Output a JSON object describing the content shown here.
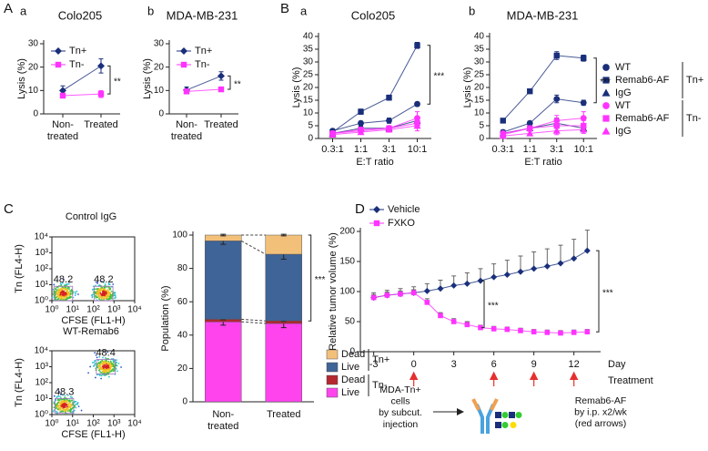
{
  "panel_labels": [
    "A",
    "a",
    "b",
    "B",
    "a",
    "b",
    "C",
    "D"
  ],
  "chart_data": [
    {
      "type": "line",
      "title": "Colo205",
      "ylabel": "Lysis (%)",
      "categories": [
        "Non-\ntreated",
        "Treated"
      ],
      "ylim": [
        0,
        30
      ],
      "yticks": [
        0,
        10,
        20,
        30
      ],
      "legend": "upper left",
      "series": [
        {
          "name": "Tn+",
          "color": "#1a2f7a",
          "marker": "diamond",
          "values": [
            10,
            20.5
          ],
          "errors": [
            2,
            3
          ]
        },
        {
          "name": "Tn-",
          "color": "#ff33ff",
          "marker": "square",
          "values": [
            7.8,
            8.5
          ],
          "errors": [
            0.8,
            1.5
          ]
        }
      ],
      "significance": "**"
    },
    {
      "type": "line",
      "title": "MDA-MB-231",
      "ylabel": "Lysis (%)",
      "categories": [
        "Non-\ntreated",
        "Treated"
      ],
      "ylim": [
        0,
        30
      ],
      "yticks": [
        0,
        10,
        20,
        30
      ],
      "legend": "upper left",
      "series": [
        {
          "name": "Tn+",
          "color": "#1a2f7a",
          "marker": "diamond",
          "values": [
            10.2,
            16.2
          ],
          "errors": [
            1.3,
            1.8
          ]
        },
        {
          "name": "Tn-",
          "color": "#ff33ff",
          "marker": "square",
          "values": [
            9.6,
            10.5
          ],
          "errors": [
            0.8,
            0.8
          ]
        }
      ],
      "significance": "**"
    },
    {
      "type": "line",
      "title": "Colo205",
      "ylabel": "Lysis (%)",
      "xlabel": "E:T ratio",
      "categories": [
        "0.3:1",
        "1:1",
        "3:1",
        "10:1"
      ],
      "ylim": [
        0,
        40
      ],
      "yticks": [
        0,
        5,
        10,
        15,
        20,
        25,
        30,
        35,
        40
      ],
      "series": [
        {
          "name": "WT",
          "color": "#1a2f7a",
          "marker": "circle",
          "values": [
            3,
            6,
            7,
            13.5
          ],
          "errors": [
            0.8,
            0.8,
            1,
            0.8
          ]
        },
        {
          "name": "Remab6-AF",
          "color": "#1a2f7a",
          "marker": "square",
          "values": [
            2.5,
            10.5,
            16,
            36.5
          ],
          "errors": [
            0.8,
            1,
            1,
            1.2
          ]
        },
        {
          "name": "IgG",
          "color": "#1a2f7a",
          "marker": "triangle",
          "values": [
            2,
            4,
            4,
            7
          ],
          "errors": [
            0.8,
            0.8,
            1,
            1.5
          ]
        },
        {
          "name": "WT",
          "color": "#ff33ff",
          "marker": "circle",
          "values": [
            2,
            3,
            4,
            8
          ],
          "errors": [
            0.8,
            0.8,
            1,
            2.5
          ]
        },
        {
          "name": "Remab6-AF",
          "color": "#ff33ff",
          "marker": "square",
          "values": [
            2,
            3.5,
            4,
            6
          ],
          "errors": [
            0.8,
            0.8,
            1,
            2
          ]
        },
        {
          "name": "IgG",
          "color": "#ff33ff",
          "marker": "triangle",
          "values": [
            1.5,
            2.5,
            3.5,
            5
          ],
          "errors": [
            0.8,
            0.8,
            1,
            2
          ]
        }
      ],
      "significance": "***"
    },
    {
      "type": "line",
      "title": "MDA-MB-231",
      "ylabel": "Lysis (%)",
      "xlabel": "E:T ratio",
      "categories": [
        "0.3:1",
        "1:1",
        "3:1",
        "10:1"
      ],
      "ylim": [
        0,
        40
      ],
      "yticks": [
        0,
        5,
        10,
        15,
        20,
        25,
        30,
        35,
        40
      ],
      "legend": "right",
      "legend_groups": [
        "Tn+",
        "Tn-"
      ],
      "series": [
        {
          "name": "WT",
          "color": "#1a2f7a",
          "marker": "circle",
          "values": [
            2.5,
            6,
            15.5,
            14
          ],
          "errors": [
            0.8,
            0.8,
            1.5,
            1
          ]
        },
        {
          "name": "Remab6-AF",
          "color": "#1a2f7a",
          "marker": "square",
          "values": [
            7,
            18.5,
            32.5,
            31.5
          ],
          "errors": [
            0.8,
            0.8,
            1.5,
            1.2
          ]
        },
        {
          "name": "IgG",
          "color": "#1a2f7a",
          "marker": "triangle",
          "values": [
            2,
            4,
            6,
            4
          ],
          "errors": [
            0.8,
            1,
            2,
            1.5
          ]
        },
        {
          "name": "WT",
          "color": "#ff33ff",
          "marker": "circle",
          "values": [
            2,
            4,
            7,
            8
          ],
          "errors": [
            0.8,
            1,
            2,
            2.5
          ]
        },
        {
          "name": "Remab6-AF",
          "color": "#ff33ff",
          "marker": "square",
          "values": [
            1.5,
            4,
            5,
            5
          ],
          "errors": [
            0.8,
            1,
            2,
            2
          ]
        },
        {
          "name": "IgG",
          "color": "#ff33ff",
          "marker": "triangle",
          "values": [
            1,
            2,
            3,
            3.5
          ],
          "errors": [
            0.8,
            0.8,
            1.5,
            1.5
          ]
        }
      ],
      "significance": "***"
    },
    {
      "type": "flow",
      "title": "Control IgG",
      "xlabel": "CFSE (FL1-H)",
      "ylabel": "Tn (FL4-H)",
      "log": true,
      "xlim": [
        1,
        10000
      ],
      "ylim": [
        1,
        10000
      ],
      "xticks": [
        {
          "value": 1,
          "label": "10⁰"
        },
        {
          "value": 10,
          "label": "10¹"
        },
        {
          "value": 100,
          "label": "10²"
        },
        {
          "value": 1000,
          "label": "10³"
        },
        {
          "value": 10000,
          "label": "10⁴"
        }
      ],
      "yticks": [
        {
          "value": 1,
          "label": "10⁰"
        },
        {
          "value": 10,
          "label": "10¹"
        },
        {
          "value": 100,
          "label": "10²"
        },
        {
          "value": 1000,
          "label": "10³"
        },
        {
          "value": 10000,
          "label": "10⁴"
        }
      ],
      "gate_labels": [
        "48.2",
        "48.2"
      ]
    },
    {
      "type": "flow",
      "title": "WT-Remab6",
      "xlabel": "CFSE (FL1-H)",
      "ylabel": "Tn (FL4-H)",
      "log": true,
      "xlim": [
        1,
        10000
      ],
      "ylim": [
        1,
        10000
      ],
      "xticks": [
        {
          "value": 1,
          "label": "10⁰"
        },
        {
          "value": 10,
          "label": "10¹"
        },
        {
          "value": 100,
          "label": "10²"
        },
        {
          "value": 1000,
          "label": "10³"
        },
        {
          "value": 10000,
          "label": "10⁴"
        }
      ],
      "yticks": [
        {
          "value": 1,
          "label": "10⁰"
        },
        {
          "value": 10,
          "label": "10¹"
        },
        {
          "value": 100,
          "label": "10²"
        },
        {
          "value": 1000,
          "label": "10³"
        },
        {
          "value": 10000,
          "label": "10⁴"
        }
      ],
      "gate_labels": [
        "48.3",
        "48.4"
      ]
    },
    {
      "type": "stacked_bar",
      "ylabel": "Population (%)",
      "categories": [
        "Non-\ntreated",
        "Treated"
      ],
      "ylim": [
        0,
        100
      ],
      "yticks": [
        0,
        20,
        40,
        60,
        80,
        100
      ],
      "legend": "right",
      "legend_groups": [
        "Tn+",
        "Tn-"
      ],
      "series": [
        {
          "name": "Live",
          "color": "#ff44ee",
          "values": [
            48,
            47
          ],
          "errors": [
            2,
            2.5
          ]
        },
        {
          "name": "Dead",
          "color": "#b5272f",
          "values": [
            1.5,
            1.5
          ],
          "errors": [
            0.3,
            0.3
          ]
        },
        {
          "name": "Live",
          "color": "#3f6497",
          "values": [
            47,
            40
          ],
          "errors": [
            2,
            3
          ]
        },
        {
          "name": "Dead",
          "color": "#f3c07a",
          "values": [
            3.5,
            11.5
          ],
          "errors": [
            0.5,
            0.5
          ]
        }
      ],
      "significance": "***"
    },
    {
      "type": "line",
      "ylabel": "Relative tumor volume (%)",
      "xlabel": "Day",
      "x": [
        -3,
        -2,
        -1,
        0,
        1,
        2,
        3,
        4,
        5,
        6,
        7,
        8,
        9,
        10,
        11,
        12,
        13
      ],
      "xlim": [
        -4,
        14
      ],
      "xticks": [
        -3,
        0,
        3,
        6,
        9,
        12
      ],
      "ylim": [
        0,
        200
      ],
      "yticks": [
        0,
        50,
        100,
        150,
        200
      ],
      "legend": "upper left",
      "series": [
        {
          "name": "Vehicle",
          "color": "#1a2f7a",
          "marker": "diamond",
          "values": [
            90,
            94,
            96,
            98,
            101,
            105,
            110,
            113,
            118,
            124,
            128,
            133,
            138,
            142,
            147,
            155,
            168
          ],
          "errors": [
            8,
            8,
            9,
            10,
            12,
            14,
            16,
            18,
            20,
            22,
            24,
            26,
            28,
            29,
            30,
            32,
            34
          ]
        },
        {
          "name": "FXKO",
          "color": "#ff33ff",
          "marker": "square",
          "values": [
            90,
            94,
            96,
            98,
            82,
            60,
            50,
            45,
            40,
            38,
            37,
            35,
            33,
            32,
            31,
            32,
            33
          ],
          "errors": [
            5,
            5,
            5,
            5,
            6,
            5,
            5,
            5,
            4,
            4,
            4,
            4,
            4,
            4,
            4,
            4,
            4
          ]
        }
      ],
      "treatment_label": "Treatment",
      "treatment_days": [
        0,
        6,
        9,
        12
      ],
      "significance": [
        "***",
        "***"
      ],
      "schematic": {
        "left": "MDA-Tn+\ncells\nby subcut.\ninjection",
        "right": "Remab6-AF\nby i.p. x2/wk\n(red arrows)"
      }
    }
  ]
}
